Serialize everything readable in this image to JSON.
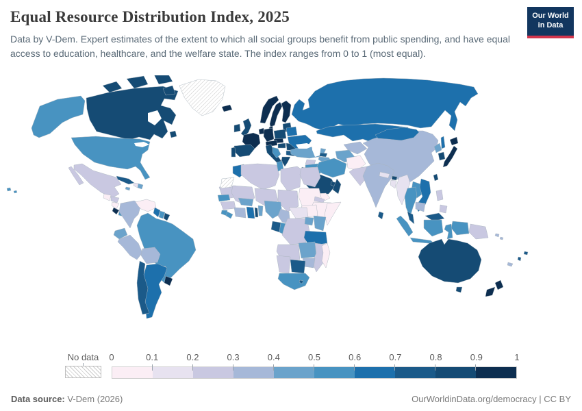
{
  "header": {
    "title": "Equal Resource Distribution Index, 2025",
    "subtitle": "Data by V-Dem. Expert estimates of the extent to which all social groups benefit from public spending, and have equal access to education, healthcare, and the welfare state. The index ranges from 0 to 1 (most equal)."
  },
  "logo": {
    "line1": "Our World",
    "line2": "in Data",
    "bg_color": "#12365f",
    "accent_color": "#d2354c"
  },
  "legend": {
    "no_data_label": "No data",
    "tick_labels": [
      "0",
      "0.1",
      "0.2",
      "0.3",
      "0.4",
      "0.5",
      "0.6",
      "0.7",
      "0.8",
      "0.9",
      "1"
    ],
    "bin_colors": [
      "#fbeef5",
      "#e7e2f0",
      "#c9c8e1",
      "#a6b8d8",
      "#6ba3cb",
      "#4893c1",
      "#1d70ac",
      "#1b5a89",
      "#154b74",
      "#0d2e50"
    ],
    "hatch_line_color": "#cccccc"
  },
  "footer": {
    "source_label": "Data source:",
    "source_value": " V-Dem (2026)",
    "link": "OurWorldinData.org/democracy",
    "separator": " | ",
    "license": "CC BY"
  },
  "chart_data": {
    "type": "choropleth-map",
    "title": "Equal Resource Distribution Index, 2025",
    "value_range": [
      0,
      1
    ],
    "legend_bins": [
      [
        0,
        0.1
      ],
      [
        0.1,
        0.2
      ],
      [
        0.2,
        0.3
      ],
      [
        0.3,
        0.4
      ],
      [
        0.4,
        0.5
      ],
      [
        0.5,
        0.6
      ],
      [
        0.6,
        0.7
      ],
      [
        0.7,
        0.8
      ],
      [
        0.8,
        0.9
      ],
      [
        0.9,
        1
      ]
    ],
    "no_data": [
      "Greenland",
      "Western Sahara"
    ],
    "countries": {
      "Canada": 0.85,
      "United States": 0.55,
      "Iceland": 0.95,
      "Mexico": 0.25,
      "Guatemala": 0.05,
      "Honduras": 0.22,
      "Nicaragua": 0.05,
      "Costa Rica": 0.92,
      "Panama": 0.55,
      "Cuba": 0.75,
      "Haiti": 0.12,
      "Dominican Republic": 0.45,
      "Jamaica": 0.45,
      "Trinidad and Tobago": 0.82,
      "Colombia": 0.35,
      "Venezuela": 0.05,
      "Guyana": 0.65,
      "Suriname": 0.55,
      "French Guiana": 0.85,
      "Ecuador": 0.45,
      "Peru": 0.32,
      "Brazil": 0.55,
      "Bolivia": 0.32,
      "Paraguay": 0.12,
      "Chile": 0.75,
      "Argentina": 0.68,
      "Uruguay": 0.9,
      "Ireland": 0.88,
      "United Kingdom": 0.85,
      "Portugal": 0.85,
      "Spain": 0.82,
      "France": 0.9,
      "Netherlands": 0.9,
      "Germany": 0.95,
      "Denmark": 0.92,
      "Norway": 0.95,
      "Sweden": 0.95,
      "Finland": 0.95,
      "Baltic states": 0.88,
      "Poland": 0.88,
      "Czechia": 0.9,
      "Austria": 0.92,
      "Hungary": 0.8,
      "Italy": 0.85,
      "Western Balkans": 0.55,
      "Romania": 0.8,
      "Bulgaria": 0.78,
      "Greece": 0.82,
      "Belarus": 0.65,
      "Ukraine": 0.62,
      "Russia": 0.65,
      "Kazakhstan": 0.68,
      "Turkey": 0.45,
      "Georgia": 0.78,
      "Azerbaijan": 0.48,
      "Syria": 0.25,
      "Iraq": 0.52,
      "Iran": 0.55,
      "Israel": 0.85,
      "Jordan": 0.3,
      "Saudi Arabia": 0.82,
      "United Arab Emirates": 0.88,
      "Oman": 0.88,
      "Yemen": 0.08,
      "Turkmenistan": 0.45,
      "Uzbekistan": 0.38,
      "Kyrgyzstan": 0.55,
      "Tajikistan": 0.3,
      "Afghanistan": 0.05,
      "Pakistan": 0.25,
      "India": 0.33,
      "Nepal": 0.15,
      "Bhutan": 0.8,
      "Bangladesh": 0.1,
      "Sri Lanka": 0.7,
      "Myanmar": 0.12,
      "Thailand": 0.55,
      "Laos": 0.5,
      "Vietnam": 0.62,
      "Cambodia": 0.3,
      "Malaysia": 0.75,
      "Indonesia": 0.52,
      "Philippines": 0.25,
      "China": 0.38,
      "Mongolia": 0.62,
      "North Korea": 0.45,
      "South Korea": 0.88,
      "Japan": 0.95,
      "Taiwan": 0.82,
      "Papua New Guinea": 0.22,
      "Australia": 0.82,
      "New Zealand": 0.92,
      "Fiji": 0.72,
      "Vanuatu": 0.72,
      "Solomon Islands": 0.3,
      "New Caledonia": 0.3,
      "Morocco": 0.68,
      "Algeria": 0.22,
      "Tunisia": 0.55,
      "Libya": 0.25,
      "Egypt": 0.28,
      "Mauritania": 0.22,
      "Mali": 0.2,
      "Niger": 0.25,
      "Chad": 0.25,
      "Sudan": 0.08,
      "South Sudan": 0.07,
      "Eritrea": 0.2,
      "Ethiopia": 0.05,
      "Somalia": 0.07,
      "Kenya": 0.45,
      "Uganda": 0.4,
      "Senegal": 0.52,
      "Guinea": 0.25,
      "Sierra Leone": 0.5,
      "Liberia": 0.5,
      "Cote d'Ivoire": 0.35,
      "Ghana": 0.62,
      "Togo": 0.8,
      "Benin": 0.42,
      "Burkina Faso": 0.42,
      "Nigeria": 0.4,
      "Cameroon": 0.35,
      "Central African Republic": 0.15,
      "Gabon": 0.7,
      "Republic of the Congo": 0.5,
      "Democratic Republic of Congo": 0.22,
      "Tanzania": 0.62,
      "Angola": 0.22,
      "Zambia": 0.4,
      "Mozambique": 0.22,
      "Zimbabwe": 0.32,
      "Botswana": 0.72,
      "Namibia": 0.25,
      "South Africa": 0.58,
      "Lesotho": 0.75,
      "Madagascar": 0.08
    }
  }
}
